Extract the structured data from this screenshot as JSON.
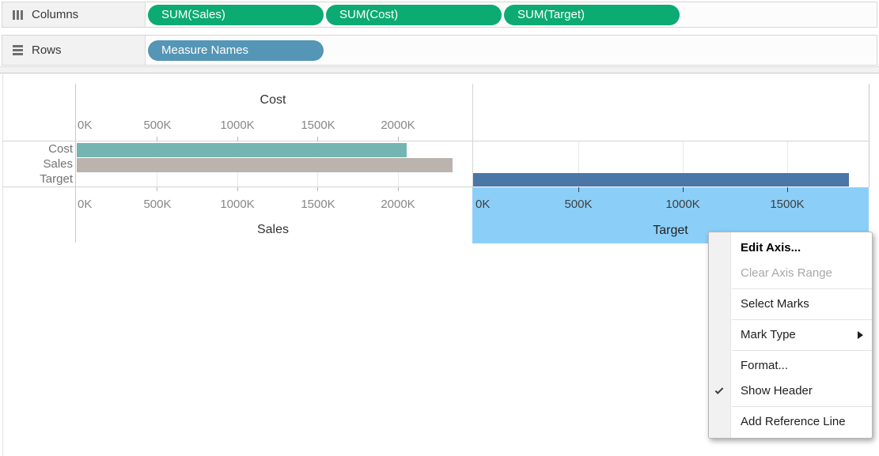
{
  "shelves": {
    "columns": {
      "label": "Columns",
      "pills": [
        "SUM(Sales)",
        "SUM(Cost)",
        "SUM(Target)"
      ]
    },
    "rows": {
      "label": "Rows",
      "pills": [
        "Measure Names"
      ]
    }
  },
  "colors": {
    "measure_pill": "#0cab73",
    "dimension_pill": "#5595b5",
    "axis_highlight": "#8bcff9",
    "bar_cost": "#75b5b1",
    "bar_sales": "#bbb3ae",
    "bar_target": "#4a76a8"
  },
  "chart_data": {
    "type": "bar",
    "orientation": "horizontal",
    "row_headers": [
      "Cost",
      "Sales",
      "Target"
    ],
    "panels": [
      {
        "top_axis_title": "Cost",
        "bottom_axis_title": "Sales",
        "tick_labels": [
          "0K",
          "500K",
          "1000K",
          "1500K",
          "2000K"
        ],
        "tick_values_k": [
          0,
          500,
          1000,
          1500,
          2000
        ],
        "xlim_k": [
          0,
          2450
        ],
        "grid": true,
        "bars": [
          {
            "row": "Cost",
            "value_k": 2050,
            "color": "#75b5b1"
          },
          {
            "row": "Sales",
            "value_k": 2335,
            "color": "#bbb3ae"
          }
        ]
      },
      {
        "bottom_axis_title": "Target",
        "tick_labels": [
          "0K",
          "500K",
          "1000K",
          "1500K"
        ],
        "tick_values_k": [
          0,
          500,
          1000,
          1500
        ],
        "xlim_k": [
          0,
          1900
        ],
        "axis_selected": true,
        "grid": true,
        "bars": [
          {
            "row": "Target",
            "value_k": 1805,
            "color": "#4a76a8"
          }
        ]
      }
    ]
  },
  "context_menu": {
    "items": [
      {
        "label": "Edit Axis...",
        "bold": true
      },
      {
        "label": "Clear Axis Range",
        "disabled": true
      },
      {
        "separator": true
      },
      {
        "label": "Select Marks"
      },
      {
        "separator": true
      },
      {
        "label": "Mark Type",
        "submenu": true
      },
      {
        "separator": true
      },
      {
        "label": "Format..."
      },
      {
        "label": "Show Header",
        "checked": true
      },
      {
        "separator": true
      },
      {
        "label": "Add Reference Line"
      }
    ]
  }
}
